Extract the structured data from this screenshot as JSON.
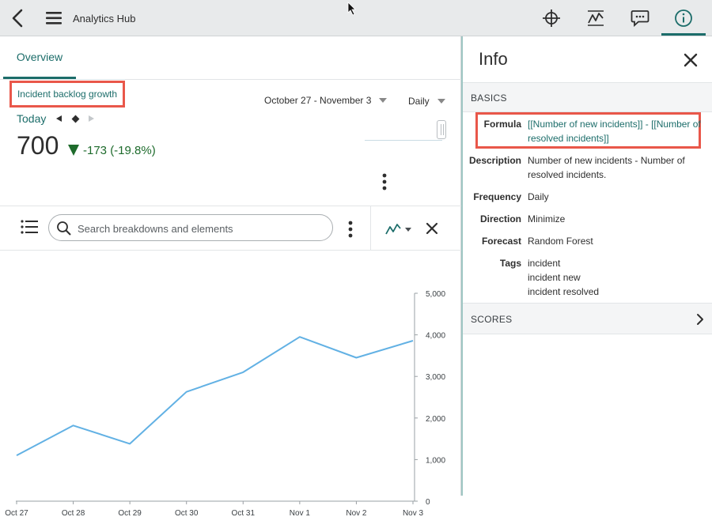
{
  "app": {
    "title": "Analytics Hub"
  },
  "toolbar": {
    "icons": [
      "crosshair-icon",
      "trend-icon",
      "comment-icon",
      "info-icon"
    ],
    "active": "info-icon",
    "accent": "#1c6d6a"
  },
  "tabs": [
    {
      "label": "Overview",
      "active": true
    }
  ],
  "metric": {
    "title": "Incident backlog growth",
    "date_range": "October 27 - November 3",
    "frequency": "Daily",
    "today_label": "Today",
    "value": "700",
    "delta": "-173 (-19.8%)",
    "delta_color": "#1e6b2c"
  },
  "search": {
    "placeholder": "Search breakdowns and elements"
  },
  "chart_data": {
    "type": "line",
    "x": [
      "Oct 27",
      "Oct 28",
      "Oct 29",
      "Oct 30",
      "Oct 31",
      "Nov 1",
      "Nov 2",
      "Nov 3"
    ],
    "series": [
      {
        "values": [
          1100,
          1820,
          1380,
          2630,
          3100,
          3950,
          3450,
          3860
        ],
        "color": "#62b1e4"
      }
    ],
    "ylim": [
      0,
      5000
    ],
    "y_ticks": [
      0,
      1000,
      2000,
      3000,
      4000,
      5000
    ],
    "y_tick_labels": [
      "0",
      "1,000",
      "2,000",
      "3,000",
      "4,000",
      "5,000"
    ],
    "y_axis_side": "right",
    "grid": false
  },
  "info": {
    "title": "Info",
    "sections": {
      "basics": "BASICS",
      "scores": "SCORES"
    },
    "formula": {
      "label": "Formula",
      "value": "[[Number of new incidents]] - [[Number of resolved incidents]]"
    },
    "description": {
      "label": "Description",
      "value": "Number of new incidents - Number of resolved incidents."
    },
    "frequency": {
      "label": "Frequency",
      "value": "Daily"
    },
    "direction": {
      "label": "Direction",
      "value": "Minimize"
    },
    "forecast": {
      "label": "Forecast",
      "value": "Random Forest"
    },
    "tags": {
      "label": "Tags",
      "values": [
        "incident",
        "incident new",
        "incident resolved"
      ]
    }
  }
}
